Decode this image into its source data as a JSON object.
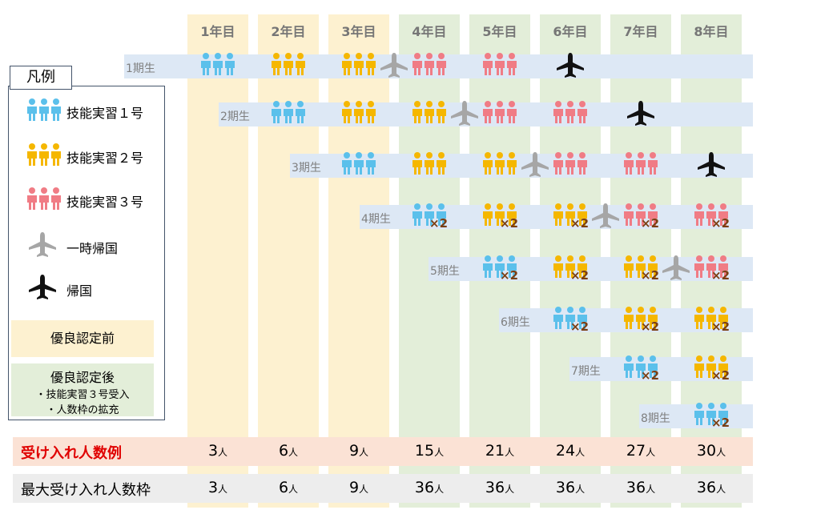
{
  "years": [
    "1年目",
    "2年目",
    "3年目",
    "4年目",
    "5年目",
    "6年目",
    "7年目",
    "8年目"
  ],
  "year_bg": [
    "yellow",
    "yellow",
    "yellow",
    "green",
    "green",
    "green",
    "green",
    "green"
  ],
  "cohorts": [
    {
      "label": "1期生",
      "start": 0,
      "items": [
        {
          "col": 0,
          "type": "t1"
        },
        {
          "col": 1,
          "type": "t2"
        },
        {
          "col": 2,
          "type": "t2",
          "plane": "grey"
        },
        {
          "col": 3,
          "type": "t3"
        },
        {
          "col": 4,
          "type": "t3"
        },
        {
          "col": 5,
          "type": "end"
        }
      ]
    },
    {
      "label": "2期生",
      "start": 1,
      "items": [
        {
          "col": 1,
          "type": "t1"
        },
        {
          "col": 2,
          "type": "t2"
        },
        {
          "col": 3,
          "type": "t2",
          "plane": "grey"
        },
        {
          "col": 4,
          "type": "t3"
        },
        {
          "col": 5,
          "type": "t3"
        },
        {
          "col": 6,
          "type": "end"
        }
      ]
    },
    {
      "label": "3期生",
      "start": 2,
      "items": [
        {
          "col": 2,
          "type": "t1"
        },
        {
          "col": 3,
          "type": "t2"
        },
        {
          "col": 4,
          "type": "t2",
          "plane": "grey"
        },
        {
          "col": 5,
          "type": "t3"
        },
        {
          "col": 6,
          "type": "t3"
        },
        {
          "col": 7,
          "type": "end"
        }
      ]
    },
    {
      "label": "4期生",
      "start": 3,
      "items": [
        {
          "col": 3,
          "type": "t1",
          "x2": true
        },
        {
          "col": 4,
          "type": "t2",
          "x2": true
        },
        {
          "col": 5,
          "type": "t2",
          "x2": true,
          "plane": "grey"
        },
        {
          "col": 6,
          "type": "t3",
          "x2": true
        },
        {
          "col": 7,
          "type": "t3",
          "x2": true
        }
      ]
    },
    {
      "label": "5期生",
      "start": 4,
      "items": [
        {
          "col": 4,
          "type": "t1",
          "x2": true
        },
        {
          "col": 5,
          "type": "t2",
          "x2": true
        },
        {
          "col": 6,
          "type": "t2",
          "x2": true,
          "plane": "grey"
        },
        {
          "col": 7,
          "type": "t3",
          "x2": true
        }
      ]
    },
    {
      "label": "6期生",
      "start": 5,
      "items": [
        {
          "col": 5,
          "type": "t1",
          "x2": true
        },
        {
          "col": 6,
          "type": "t2",
          "x2": true
        },
        {
          "col": 7,
          "type": "t2",
          "x2": true
        }
      ]
    },
    {
      "label": "7期生",
      "start": 6,
      "items": [
        {
          "col": 6,
          "type": "t1",
          "x2": true
        },
        {
          "col": 7,
          "type": "t2",
          "x2": true
        }
      ]
    },
    {
      "label": "8期生",
      "start": 7,
      "items": [
        {
          "col": 7,
          "type": "t1",
          "x2": true
        }
      ]
    }
  ],
  "x2_label": "×2",
  "colors": {
    "t1": "#5bc0eb",
    "t2": "#f5b700",
    "t3": "#f07c85",
    "grey_plane": "#a6a6a6",
    "black_plane": "#111111"
  },
  "legend": {
    "title": "凡例",
    "t1": "技能実習１号",
    "t2": "技能実習２号",
    "t3": "技能実習３号",
    "temp_return": "一時帰国",
    "return": "帰国",
    "before": "優良認定前",
    "after_title": "優良認定後",
    "after_l1": "・技能実習３号受入",
    "after_l2": "・人数枠の拡充"
  },
  "rows": {
    "example_label": "受け入れ人数例",
    "example_values": [
      "3",
      "6",
      "9",
      "15",
      "21",
      "24",
      "27",
      "30"
    ],
    "max_label": "最大受け入れ人数枠",
    "max_values": [
      "3",
      "6",
      "9",
      "36",
      "36",
      "36",
      "36",
      "36"
    ],
    "unit": "人"
  }
}
